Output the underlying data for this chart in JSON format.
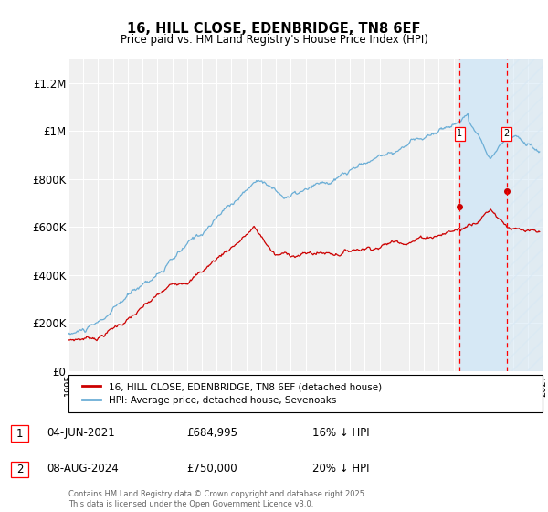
{
  "title": "16, HILL CLOSE, EDENBRIDGE, TN8 6EF",
  "subtitle": "Price paid vs. HM Land Registry's House Price Index (HPI)",
  "ylabel_ticks": [
    "£0",
    "£200K",
    "£400K",
    "£600K",
    "£800K",
    "£1M",
    "£1.2M"
  ],
  "ytick_values": [
    0,
    200000,
    400000,
    600000,
    800000,
    1000000,
    1200000
  ],
  "ylim": [
    0,
    1300000
  ],
  "xlim_start": 1995,
  "xlim_end": 2027,
  "hpi_color": "#6baed6",
  "price_color": "#cc0000",
  "transaction1_date": "04-JUN-2021",
  "transaction1_price": 684995,
  "transaction1_pct": "16% ↓ HPI",
  "transaction1_x": 2021.42,
  "transaction2_date": "08-AUG-2024",
  "transaction2_price": 750000,
  "transaction2_pct": "20% ↓ HPI",
  "transaction2_x": 2024.58,
  "legend_line1": "16, HILL CLOSE, EDENBRIDGE, TN8 6EF (detached house)",
  "legend_line2": "HPI: Average price, detached house, Sevenoaks",
  "footer": "Contains HM Land Registry data © Crown copyright and database right 2025.\nThis data is licensed under the Open Government Licence v3.0.",
  "background_color": "#ffffff",
  "plot_bg_color": "#f0f0f0",
  "grid_color": "#ffffff",
  "hatch_region_color": "#ddeeff"
}
